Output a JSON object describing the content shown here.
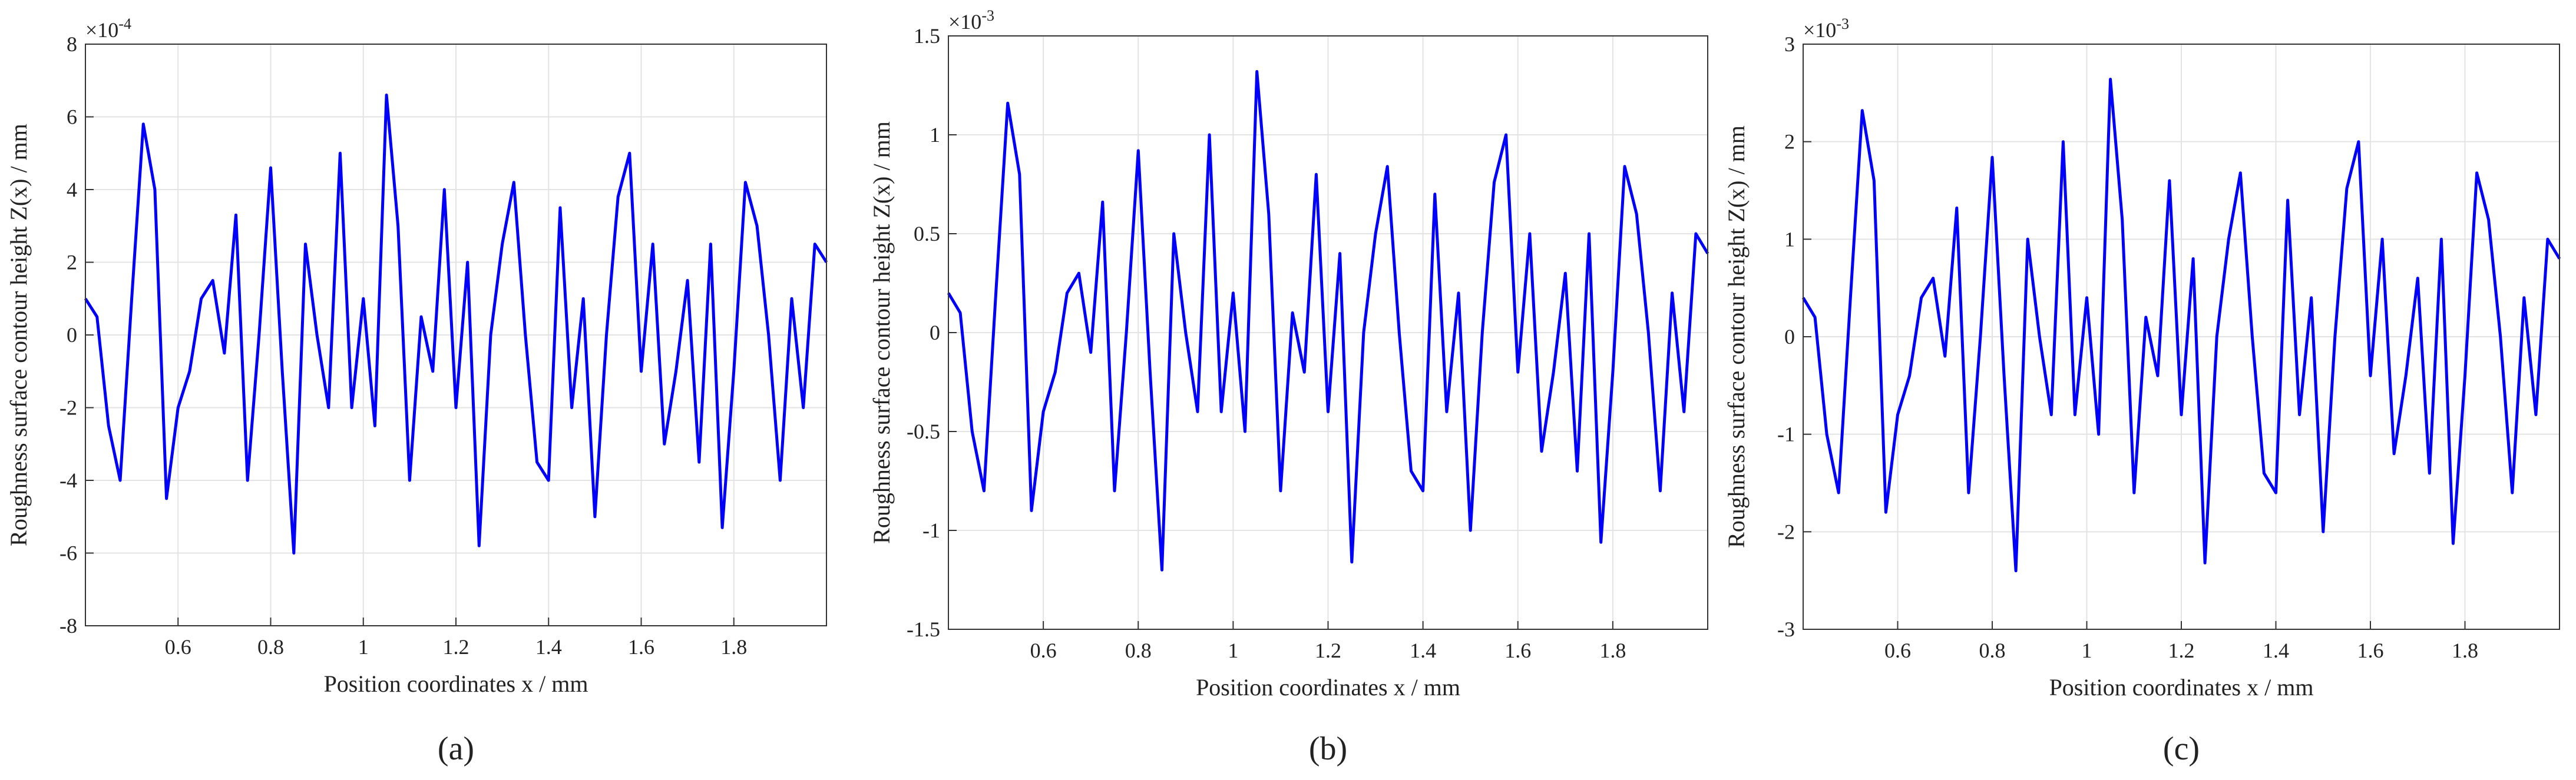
{
  "chart_data": [
    {
      "type": "line",
      "caption": "(a)",
      "x_label": "Position coordinates x / mm",
      "y_label": "Roughness surface contour height Z(x) / mm",
      "y_scale_label": {
        "base": "×10",
        "exponent": "-4"
      },
      "color": "#0000ff",
      "grid": true,
      "xlim": [
        0.4,
        2.0
      ],
      "xticks": [
        0.6,
        0.8,
        1,
        1.2,
        1.4,
        1.6,
        1.8
      ],
      "ylim": [
        -8,
        8
      ],
      "yticks": [
        -8,
        -6,
        -4,
        -2,
        0,
        2,
        4,
        6,
        8
      ],
      "x": [
        0.4,
        0.425,
        0.45,
        0.475,
        0.5,
        0.525,
        0.55,
        0.575,
        0.6,
        0.625,
        0.65,
        0.675,
        0.7,
        0.725,
        0.75,
        0.775,
        0.8,
        0.825,
        0.85,
        0.875,
        0.9,
        0.925,
        0.95,
        0.975,
        1,
        1.025,
        1.05,
        1.075,
        1.1,
        1.125,
        1.15,
        1.175,
        1.2,
        1.225,
        1.25,
        1.275,
        1.3,
        1.325,
        1.35,
        1.375,
        1.4,
        1.425,
        1.45,
        1.475,
        1.5,
        1.525,
        1.55,
        1.575,
        1.6,
        1.625,
        1.65,
        1.675,
        1.7,
        1.725,
        1.75,
        1.775,
        1.8,
        1.825,
        1.85,
        1.875,
        1.9,
        1.925,
        1.95,
        1.975,
        2
      ],
      "values": [
        1,
        0.5,
        -2.5,
        -4,
        1,
        5.8,
        4,
        -4.5,
        -2,
        -1,
        1,
        1.5,
        -0.5,
        3.3,
        -4,
        0,
        4.6,
        -1,
        -6,
        2.5,
        0,
        -2,
        5,
        -2,
        1,
        -2.5,
        6.6,
        3,
        -4,
        0.5,
        -1,
        4,
        -2,
        2,
        -5.8,
        0,
        2.5,
        4.2,
        0,
        -3.5,
        -4,
        3.5,
        -2,
        1,
        -5,
        0,
        3.8,
        5,
        -1,
        2.5,
        -3,
        -1,
        1.5,
        -3.5,
        2.5,
        -5.3,
        -1,
        4.2,
        3,
        0,
        -4,
        1,
        -2,
        2.5,
        2
      ]
    },
    {
      "type": "line",
      "caption": "(b)",
      "x_label": "Position coordinates x / mm",
      "y_label": "Roughness surface contour height Z(x) / mm",
      "y_scale_label": {
        "base": "×10",
        "exponent": "-3"
      },
      "color": "#0000ff",
      "grid": true,
      "xlim": [
        0.4,
        2.0
      ],
      "xticks": [
        0.6,
        0.8,
        1,
        1.2,
        1.4,
        1.6,
        1.8
      ],
      "ylim": [
        -1.5,
        1.5
      ],
      "yticks": [
        -1.5,
        -1,
        -0.5,
        0,
        0.5,
        1,
        1.5
      ],
      "x": [
        0.4,
        0.425,
        0.45,
        0.475,
        0.5,
        0.525,
        0.55,
        0.575,
        0.6,
        0.625,
        0.65,
        0.675,
        0.7,
        0.725,
        0.75,
        0.775,
        0.8,
        0.825,
        0.85,
        0.875,
        0.9,
        0.925,
        0.95,
        0.975,
        1,
        1.025,
        1.05,
        1.075,
        1.1,
        1.125,
        1.15,
        1.175,
        1.2,
        1.225,
        1.25,
        1.275,
        1.3,
        1.325,
        1.35,
        1.375,
        1.4,
        1.425,
        1.45,
        1.475,
        1.5,
        1.525,
        1.55,
        1.575,
        1.6,
        1.625,
        1.65,
        1.675,
        1.7,
        1.725,
        1.75,
        1.775,
        1.8,
        1.825,
        1.85,
        1.875,
        1.9,
        1.925,
        1.95,
        1.975,
        2
      ],
      "values": [
        0.2,
        0.1,
        -0.5,
        -0.8,
        0.2,
        1.16,
        0.8,
        -0.9,
        -0.4,
        -0.2,
        0.2,
        0.3,
        -0.1,
        0.66,
        -0.8,
        0,
        0.92,
        -0.2,
        -1.2,
        0.5,
        0,
        -0.4,
        1,
        -0.4,
        0.2,
        -0.5,
        1.32,
        0.6,
        -0.8,
        0.1,
        -0.2,
        0.8,
        -0.4,
        0.4,
        -1.16,
        0,
        0.5,
        0.84,
        0,
        -0.7,
        -0.8,
        0.7,
        -0.4,
        0.2,
        -1,
        0,
        0.76,
        1,
        -0.2,
        0.5,
        -0.6,
        -0.2,
        0.3,
        -0.7,
        0.5,
        -1.06,
        -0.2,
        0.84,
        0.6,
        0,
        -0.8,
        0.2,
        -0.4,
        0.5,
        0.4
      ]
    },
    {
      "type": "line",
      "caption": "(c)",
      "x_label": "Position coordinates x / mm",
      "y_label": "Roughness surface contour height Z(x) / mm",
      "y_scale_label": {
        "base": "×10",
        "exponent": "-3"
      },
      "color": "#0000ff",
      "grid": true,
      "xlim": [
        0.4,
        2.0
      ],
      "xticks": [
        0.6,
        0.8,
        1,
        1.2,
        1.4,
        1.6,
        1.8
      ],
      "ylim": [
        -3,
        3
      ],
      "yticks": [
        -3,
        -2,
        -1,
        0,
        1,
        2,
        3
      ],
      "x": [
        0.4,
        0.425,
        0.45,
        0.475,
        0.5,
        0.525,
        0.55,
        0.575,
        0.6,
        0.625,
        0.65,
        0.675,
        0.7,
        0.725,
        0.75,
        0.775,
        0.8,
        0.825,
        0.85,
        0.875,
        0.9,
        0.925,
        0.95,
        0.975,
        1,
        1.025,
        1.05,
        1.075,
        1.1,
        1.125,
        1.15,
        1.175,
        1.2,
        1.225,
        1.25,
        1.275,
        1.3,
        1.325,
        1.35,
        1.375,
        1.4,
        1.425,
        1.45,
        1.475,
        1.5,
        1.525,
        1.55,
        1.575,
        1.6,
        1.625,
        1.65,
        1.675,
        1.7,
        1.725,
        1.75,
        1.775,
        1.8,
        1.825,
        1.85,
        1.875,
        1.9,
        1.925,
        1.95,
        1.975,
        2
      ],
      "values": [
        0.4,
        0.2,
        -1,
        -1.6,
        0.4,
        2.32,
        1.6,
        -1.8,
        -0.8,
        -0.4,
        0.4,
        0.6,
        -0.2,
        1.32,
        -1.6,
        0,
        1.84,
        -0.4,
        -2.4,
        1,
        0,
        -0.8,
        2,
        -0.8,
        0.4,
        -1,
        2.64,
        1.2,
        -1.6,
        0.2,
        -0.4,
        1.6,
        -0.8,
        0.8,
        -2.32,
        0,
        1,
        1.68,
        0,
        -1.4,
        -1.6,
        1.4,
        -0.8,
        0.4,
        -2,
        0,
        1.52,
        2,
        -0.4,
        1,
        -1.2,
        -0.4,
        0.6,
        -1.4,
        1,
        -2.12,
        -0.4,
        1.68,
        1.2,
        0,
        -1.6,
        0.4,
        -0.8,
        1,
        0.8
      ]
    }
  ]
}
